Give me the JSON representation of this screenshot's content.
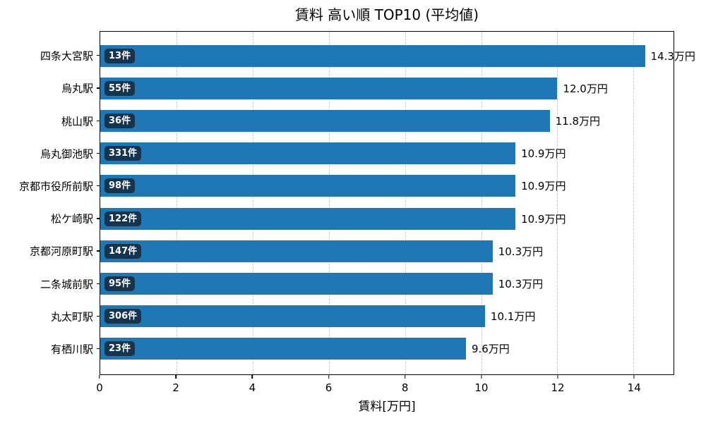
{
  "chart_data": {
    "type": "bar",
    "orientation": "horizontal",
    "title": "賃料 高い順 TOP10 (平均値)",
    "xlabel": "賃料[万円]",
    "xlim": [
      0,
      15.05
    ],
    "xticks": [
      0,
      2,
      4,
      6,
      8,
      10,
      12,
      14
    ],
    "grid": "vertical-dashed",
    "legend": "none",
    "unit": "万円",
    "items": [
      {
        "station": "四条大宮駅",
        "value": 14.3,
        "value_label": "14.3万円",
        "count": 13,
        "count_label": "13件"
      },
      {
        "station": "烏丸駅",
        "value": 12.0,
        "value_label": "12.0万円",
        "count": 55,
        "count_label": "55件"
      },
      {
        "station": "桃山駅",
        "value": 11.8,
        "value_label": "11.8万円",
        "count": 36,
        "count_label": "36件"
      },
      {
        "station": "烏丸御池駅",
        "value": 10.9,
        "value_label": "10.9万円",
        "count": 331,
        "count_label": "331件"
      },
      {
        "station": "京都市役所前駅",
        "value": 10.9,
        "value_label": "10.9万円",
        "count": 98,
        "count_label": "98件"
      },
      {
        "station": "松ケ崎駅",
        "value": 10.9,
        "value_label": "10.9万円",
        "count": 122,
        "count_label": "122件"
      },
      {
        "station": "京都河原町駅",
        "value": 10.3,
        "value_label": "10.3万円",
        "count": 147,
        "count_label": "147件"
      },
      {
        "station": "二条城前駅",
        "value": 10.3,
        "value_label": "10.3万円",
        "count": 95,
        "count_label": "95件"
      },
      {
        "station": "丸太町駅",
        "value": 10.1,
        "value_label": "10.1万円",
        "count": 306,
        "count_label": "306件"
      },
      {
        "station": "有栖川駅",
        "value": 9.6,
        "value_label": "9.6万円",
        "count": 23,
        "count_label": "23件"
      }
    ]
  },
  "colors": {
    "bar": "#1f77b4",
    "badge_background": "#17344e",
    "badge_text": "#ffffff",
    "grid": "#c9c9c9",
    "spine": "#000000",
    "background": "#ffffff"
  }
}
